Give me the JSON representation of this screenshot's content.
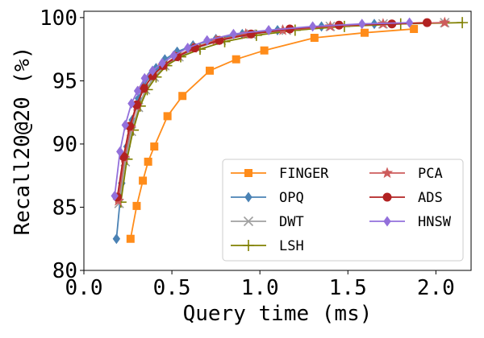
{
  "chart_data": {
    "type": "line",
    "title": "",
    "xlabel": "Query time (ms)",
    "ylabel": "Recall20@20 (%)",
    "xlim": [
      0.0,
      2.2
    ],
    "ylim": [
      80,
      100.5
    ],
    "xticks": [
      0.0,
      0.5,
      1.0,
      1.5,
      2.0
    ],
    "xtick_labels": [
      "0.0",
      "0.5",
      "1.0",
      "1.5",
      "2.0"
    ],
    "yticks": [
      80,
      85,
      90,
      95,
      100
    ],
    "ytick_labels": [
      "80",
      "85",
      "90",
      "95",
      "100"
    ],
    "grid": false,
    "legend": {
      "placement": "lower-right",
      "columns": 2
    },
    "series": [
      {
        "name": "FINGER",
        "color": "#ff8c1a",
        "marker": "square",
        "x": [
          0.265,
          0.3,
          0.335,
          0.365,
          0.4,
          0.475,
          0.56,
          0.715,
          0.865,
          1.025,
          1.31,
          1.595,
          1.875
        ],
        "y": [
          82.5,
          85.1,
          87.1,
          88.6,
          89.8,
          92.2,
          93.8,
          95.8,
          96.7,
          97.4,
          98.4,
          98.8,
          99.1
        ]
      },
      {
        "name": "OPQ",
        "color": "#4a82b4",
        "marker": "diamond",
        "x": [
          0.185,
          0.215,
          0.245,
          0.275,
          0.31,
          0.34,
          0.375,
          0.41,
          0.46,
          0.53,
          0.62,
          0.75,
          0.9,
          1.1,
          1.35,
          1.65
        ],
        "y": [
          82.5,
          86.9,
          89.8,
          91.9,
          93.6,
          94.6,
          95.4,
          96.0,
          96.7,
          97.3,
          97.8,
          98.3,
          98.7,
          99.0,
          99.3,
          99.5
        ]
      },
      {
        "name": "DWT",
        "color": "#a0a0a0",
        "marker": "x",
        "x": [
          0.2,
          0.235,
          0.27,
          0.31,
          0.35,
          0.4,
          0.46,
          0.54,
          0.64,
          0.78,
          0.95,
          1.15,
          1.4,
          1.7,
          2.05
        ],
        "y": [
          85.3,
          88.6,
          91.0,
          92.9,
          94.3,
          95.3,
          96.2,
          96.9,
          97.6,
          98.2,
          98.7,
          99.0,
          99.3,
          99.5,
          99.6
        ]
      },
      {
        "name": "LSH",
        "color": "#808000",
        "marker": "plus",
        "x": [
          0.21,
          0.245,
          0.28,
          0.32,
          0.36,
          0.41,
          0.47,
          0.55,
          0.66,
          0.8,
          0.98,
          1.2,
          1.48,
          1.8,
          2.15
        ],
        "y": [
          85.4,
          88.8,
          91.1,
          93.0,
          94.3,
          95.3,
          96.2,
          96.9,
          97.5,
          98.1,
          98.6,
          99.0,
          99.3,
          99.5,
          99.6
        ]
      },
      {
        "name": "PCA",
        "color": "#cd5c5c",
        "marker": "star",
        "x": [
          0.195,
          0.23,
          0.265,
          0.3,
          0.34,
          0.39,
          0.45,
          0.52,
          0.62,
          0.75,
          0.92,
          1.13,
          1.4,
          1.7,
          2.05
        ],
        "y": [
          85.5,
          88.9,
          91.3,
          93.0,
          94.4,
          95.4,
          96.2,
          96.9,
          97.6,
          98.2,
          98.7,
          99.0,
          99.3,
          99.5,
          99.6
        ]
      },
      {
        "name": "ADS",
        "color": "#b22222",
        "marker": "circle",
        "x": [
          0.19,
          0.225,
          0.26,
          0.3,
          0.34,
          0.39,
          0.45,
          0.53,
          0.63,
          0.77,
          0.95,
          1.17,
          1.45,
          1.75,
          1.95
        ],
        "y": [
          85.8,
          89.0,
          91.4,
          93.1,
          94.4,
          95.4,
          96.2,
          96.9,
          97.6,
          98.2,
          98.7,
          99.1,
          99.4,
          99.5,
          99.6
        ]
      },
      {
        "name": "HNSW",
        "color": "#9370db",
        "marker": "diamond",
        "x": [
          0.175,
          0.205,
          0.235,
          0.27,
          0.305,
          0.345,
          0.39,
          0.445,
          0.51,
          0.59,
          0.7,
          0.85,
          1.05,
          1.3,
          1.58,
          1.85
        ],
        "y": [
          85.9,
          89.4,
          91.5,
          93.2,
          94.2,
          95.2,
          95.8,
          96.4,
          97.0,
          97.6,
          98.2,
          98.7,
          99.0,
          99.3,
          99.5,
          99.6
        ]
      }
    ]
  }
}
